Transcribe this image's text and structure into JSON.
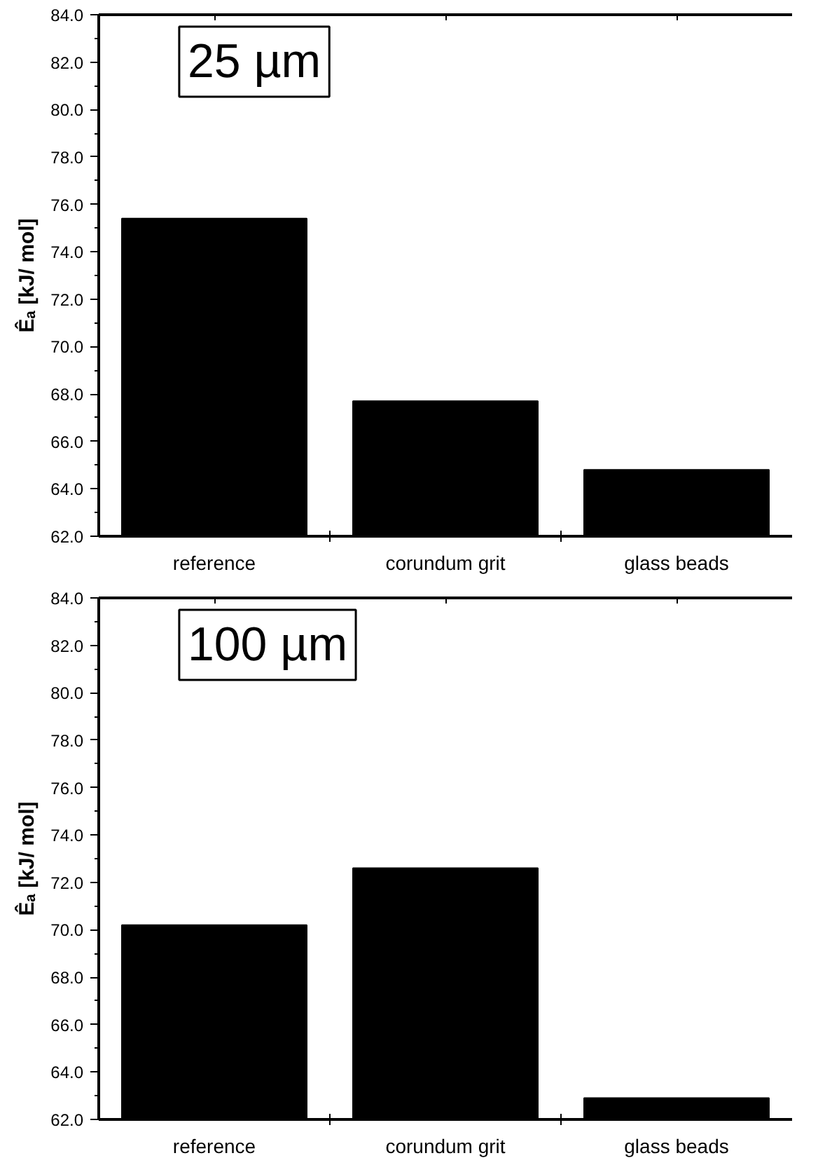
{
  "chart_data": [
    {
      "type": "bar",
      "categories": [
        "reference",
        "corundum grit",
        "glass beads"
      ],
      "values": [
        75.4,
        67.7,
        64.8
      ],
      "color": "#000000",
      "ylabel": "Êₐ [kJ/ mol]",
      "ylim": [
        62,
        84
      ],
      "yticks": [
        {
          "value": 62,
          "label": "62.0"
        },
        {
          "value": 64,
          "label": "64.0"
        },
        {
          "value": 66,
          "label": "66.0"
        },
        {
          "value": 68,
          "label": "68.0"
        },
        {
          "value": 70,
          "label": "70.0"
        },
        {
          "value": 72,
          "label": "72.0"
        },
        {
          "value": 74,
          "label": "74.0"
        },
        {
          "value": 76,
          "label": "76.0"
        },
        {
          "value": 78,
          "label": "78.0"
        },
        {
          "value": 80,
          "label": "80.0"
        },
        {
          "value": 82,
          "label": "82.0"
        },
        {
          "value": 84,
          "label": "84.0"
        }
      ],
      "annotations": [
        "25 µm"
      ]
    },
    {
      "type": "bar",
      "categories": [
        "reference",
        "corundum grit",
        "glass beads"
      ],
      "values": [
        70.2,
        72.6,
        62.9
      ],
      "color": "#000000",
      "ylabel": "Êₐ [kJ/ mol]",
      "ylim": [
        62,
        84
      ],
      "yticks": [
        {
          "value": 62,
          "label": "62.0"
        },
        {
          "value": 64,
          "label": "64.0"
        },
        {
          "value": 66,
          "label": "66.0"
        },
        {
          "value": 68,
          "label": "68.0"
        },
        {
          "value": 70,
          "label": "70.0"
        },
        {
          "value": 72,
          "label": "72.0"
        },
        {
          "value": 74,
          "label": "74.0"
        },
        {
          "value": 76,
          "label": "76.0"
        },
        {
          "value": 78,
          "label": "78.0"
        },
        {
          "value": 80,
          "label": "80.0"
        },
        {
          "value": 82,
          "label": "82.0"
        },
        {
          "value": 84,
          "label": "84.0"
        }
      ],
      "annotations": [
        "100 µm"
      ]
    }
  ]
}
